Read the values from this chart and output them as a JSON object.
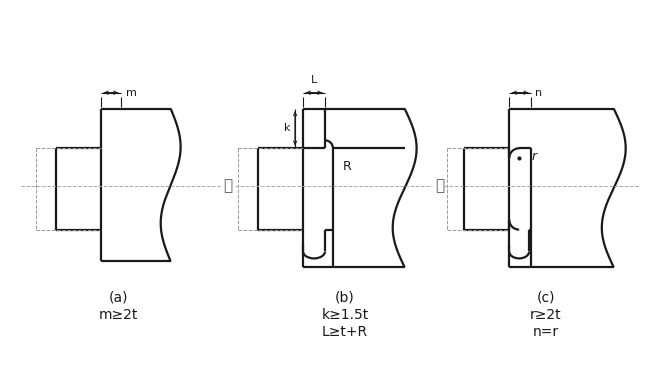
{
  "bg_color": "#ffffff",
  "line_color": "#1a1a1a",
  "dashed_color": "#999999",
  "center_color": "#aaaaaa",
  "fig_width": 6.49,
  "fig_height": 3.66,
  "labels_a": [
    "(a)",
    "m≥2t"
  ],
  "labels_b": [
    "(b)",
    "k≥1.5t",
    "L≥t+R"
  ],
  "labels_c": [
    "(c)",
    "r≥2t",
    "n=r"
  ],
  "text_or1": "或",
  "text_or2": "或"
}
